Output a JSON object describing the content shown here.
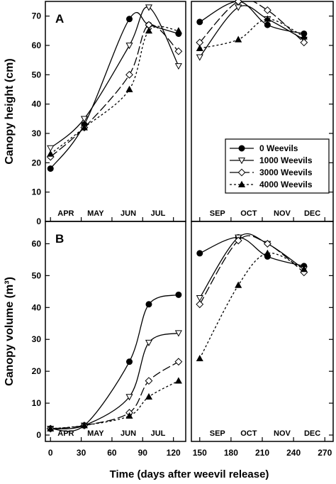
{
  "chart_data": [
    {
      "type": "line",
      "panel": "A",
      "ylabel": "Canopy height (cm)",
      "ylim": [
        0,
        75
      ],
      "yticks": [
        0,
        10,
        20,
        30,
        40,
        50,
        60,
        70
      ],
      "left_xlim": [
        -5,
        132
      ],
      "right_xlim": [
        142,
        278
      ],
      "months_left": [
        {
          "label": "APR",
          "x": 15
        },
        {
          "label": "MAY",
          "x": 44
        },
        {
          "label": "JUN",
          "x": 76
        },
        {
          "label": "JUL",
          "x": 105
        }
      ],
      "months_right": [
        {
          "label": "SEP",
          "x": 167
        },
        {
          "label": "OCT",
          "x": 197
        },
        {
          "label": "NOV",
          "x": 229
        },
        {
          "label": "DEC",
          "x": 258
        }
      ],
      "series": [
        {
          "name": "0 Weevils",
          "marker": "circle-filled",
          "dash": "",
          "x": [
            0,
            33,
            77,
            96,
            125,
            150,
            187,
            215,
            250
          ],
          "y": [
            18,
            33,
            69,
            67,
            64,
            68,
            75,
            67,
            64
          ]
        },
        {
          "name": "1000 Weevils",
          "marker": "triangle-down-open",
          "dash": "",
          "x": [
            0,
            33,
            77,
            96,
            125,
            150,
            187,
            215,
            250
          ],
          "y": [
            25,
            35,
            60,
            73,
            53,
            56,
            73,
            69,
            62
          ]
        },
        {
          "name": "3000 Weevils",
          "marker": "diamond-open",
          "dash": "12,4",
          "x": [
            0,
            33,
            77,
            96,
            125,
            150,
            187,
            215,
            250
          ],
          "y": [
            22,
            32,
            50,
            67,
            58,
            61,
            75,
            72,
            61
          ]
        },
        {
          "name": "4000 Weevils",
          "marker": "triangle-up-filled",
          "dash": "3,3",
          "x": [
            0,
            33,
            77,
            96,
            125,
            150,
            187,
            215,
            250
          ],
          "y": [
            23,
            32,
            45,
            65,
            65,
            59,
            62,
            69,
            63
          ]
        }
      ]
    },
    {
      "type": "line",
      "panel": "B",
      "ylabel": "Canopy volume (m³)",
      "ylim": [
        -2,
        67
      ],
      "yticks": [
        0,
        10,
        20,
        30,
        40,
        50,
        60
      ],
      "months_left": [
        {
          "label": "APR",
          "x": 15
        },
        {
          "label": "MAY",
          "x": 44
        },
        {
          "label": "JUN",
          "x": 76
        },
        {
          "label": "JUL",
          "x": 105
        }
      ],
      "months_right": [
        {
          "label": "SEP",
          "x": 167
        },
        {
          "label": "OCT",
          "x": 197
        },
        {
          "label": "NOV",
          "x": 229
        },
        {
          "label": "DEC",
          "x": 258
        }
      ],
      "series": [
        {
          "name": "0 Weevils",
          "marker": "circle-filled",
          "dash": "",
          "x": [
            0,
            33,
            77,
            96,
            125,
            150,
            187,
            215,
            250
          ],
          "y": [
            2,
            3,
            23,
            41,
            44,
            57,
            62,
            56,
            53
          ]
        },
        {
          "name": "1000 Weevils",
          "marker": "triangle-down-open",
          "dash": "",
          "x": [
            0,
            33,
            77,
            96,
            125,
            150,
            187,
            215,
            250
          ],
          "y": [
            2,
            3,
            12,
            29,
            32,
            43,
            62,
            60,
            52
          ]
        },
        {
          "name": "3000 Weevils",
          "marker": "diamond-open",
          "dash": "12,4",
          "x": [
            0,
            33,
            77,
            96,
            125,
            150,
            187,
            215,
            250
          ],
          "y": [
            2,
            3,
            7,
            17,
            23,
            41,
            61,
            60,
            51
          ]
        },
        {
          "name": "4000 Weevils",
          "marker": "triangle-up-filled",
          "dash": "3,3",
          "x": [
            0,
            33,
            77,
            96,
            125,
            150,
            187,
            215,
            250
          ],
          "y": [
            2,
            3,
            6,
            12,
            17,
            24,
            47,
            57,
            52
          ]
        }
      ]
    }
  ],
  "x_axis": {
    "title": "Time (days after weevil release)",
    "ticks_left": [
      0,
      30,
      60,
      90,
      120
    ],
    "ticks_right": [
      150,
      180,
      210,
      240,
      270
    ]
  },
  "legend": {
    "placement": "right-middle of panel A",
    "entries": [
      "0 Weevils",
      "1000 Weevils",
      "3000 Weevils",
      "4000 Weevils"
    ]
  }
}
